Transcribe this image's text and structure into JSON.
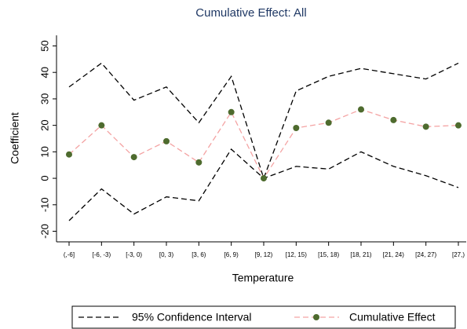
{
  "chart_data": {
    "type": "line",
    "title": "Cumulative Effect: All",
    "xlabel": "Temperature",
    "ylabel": "Coefficient",
    "categories": [
      "(,-6]",
      "[-6, -3)",
      "[-3, 0)",
      "[0, 3)",
      "[3, 6)",
      "[6, 9)",
      "[9, 12)",
      "[12, 15)",
      "[15, 18)",
      "[18, 21)",
      "[21, 24)",
      "[24, 27)",
      "[27,)"
    ],
    "series": [
      {
        "name": "95% Confidence Interval",
        "color": "#000000",
        "upper": [
          34.5,
          43.5,
          29.5,
          34.5,
          21,
          38.5,
          0,
          33,
          38.5,
          41.5,
          39.5,
          37.5,
          43.5
        ],
        "lower": [
          -16,
          -4,
          -13.5,
          -7,
          -8.5,
          11,
          0,
          4.5,
          3.5,
          10,
          4.5,
          1,
          -3.5
        ]
      },
      {
        "name": "Cumulative Effect",
        "color": "#f4a3a3",
        "marker_color": "#4e6b2e",
        "values": [
          9,
          20,
          8,
          14,
          6,
          25,
          0,
          19,
          21,
          26,
          22,
          19.5,
          20
        ]
      }
    ],
    "ylim": [
      -24,
      54
    ],
    "yticks": [
      -20,
      -10,
      0,
      10,
      20,
      30,
      40,
      50
    ],
    "grid": false,
    "legend": "bottom"
  }
}
